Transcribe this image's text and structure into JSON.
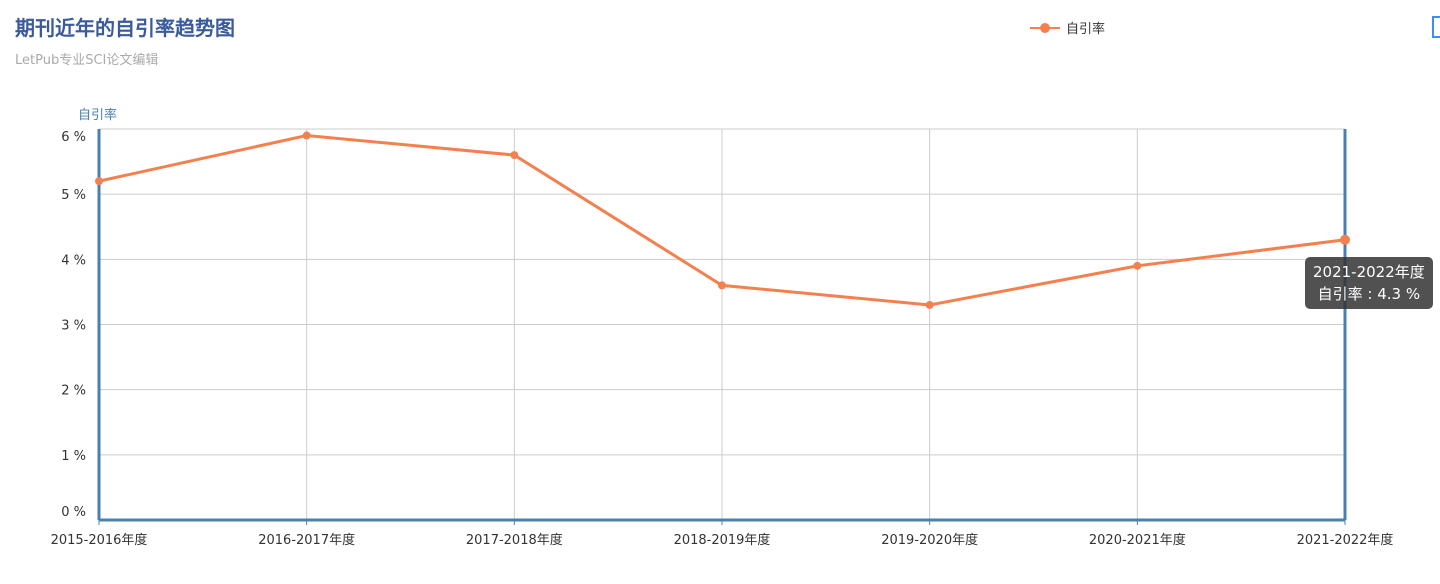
{
  "title": "期刊近年的自引率趋势图",
  "subtitle": "LetPub专业SCI论文编辑",
  "legend": {
    "label": "自引率",
    "icon": "line-circle-icon"
  },
  "toolbox": {
    "icon": "save-image-icon"
  },
  "tooltip": {
    "category": "2021-2022年度",
    "text": "自引率 : 4.3 %"
  },
  "colors": {
    "series": "#f4804f",
    "axis": "#4a7fb0",
    "title": "#3a5a9a"
  },
  "chart_data": {
    "type": "line",
    "title": "期刊近年的自引率趋势图",
    "ylabel": "自引率",
    "ylim": [
      0,
      6
    ],
    "yticks": [
      0,
      1,
      2,
      3,
      4,
      5,
      6
    ],
    "ytick_suffix": " %",
    "grid": true,
    "legend_position": "top",
    "categories": [
      "2015-2016年度",
      "2016-2017年度",
      "2017-2018年度",
      "2018-2019年度",
      "2019-2020年度",
      "2020-2021年度",
      "2021-2022年度"
    ],
    "series": [
      {
        "name": "自引率",
        "values": [
          5.2,
          5.9,
          5.6,
          3.6,
          3.3,
          3.9,
          4.3
        ]
      }
    ]
  }
}
